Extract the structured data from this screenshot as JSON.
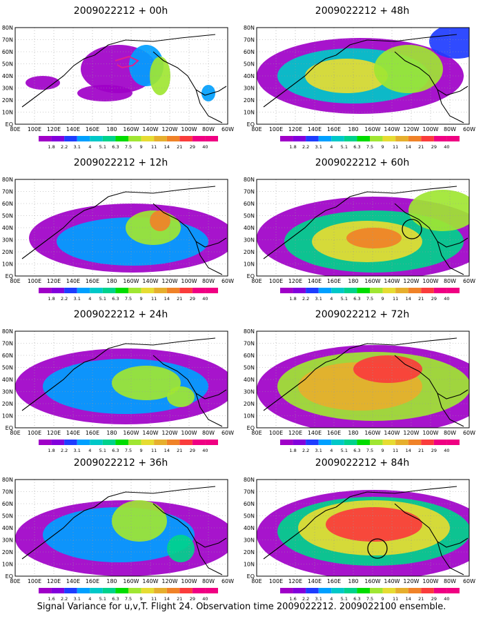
{
  "footer_caption": "Signal Variance for u,v,T. Flight 24. Observation time 2009022212. 2009022100 ensemble.",
  "lon_labels": [
    "80E",
    "100E",
    "120E",
    "140E",
    "160E",
    "180",
    "160W",
    "140W",
    "120W",
    "100W",
    "80W",
    "60W"
  ],
  "lat_labels": [
    "EQ",
    "10N",
    "20N",
    "30N",
    "40N",
    "50N",
    "60N",
    "70N",
    "80N"
  ],
  "colorbar": {
    "levels": [
      "1.8",
      "2.2",
      "3.1",
      "4",
      "5.1",
      "6.3",
      "7.5",
      "9",
      "11",
      "14",
      "21",
      "29",
      "40"
    ],
    "levels_alt": [
      "1.6",
      "2.2",
      "3.1",
      "4",
      "5.1",
      "6.3",
      "7.5",
      "9",
      "11",
      "14",
      "21",
      "29",
      "40"
    ],
    "colors": [
      "#a000c8",
      "#8200dc",
      "#1e3cff",
      "#00a0ff",
      "#00c8c8",
      "#00d28c",
      "#00dc00",
      "#a0e632",
      "#e6dc32",
      "#e6af2d",
      "#f08228",
      "#fa3c3c",
      "#f00082"
    ]
  },
  "panels": [
    {
      "title": "2009022212 + 00h",
      "overlay": "flight"
    },
    {
      "title": "2009022212 + 48h",
      "overlay": "none"
    },
    {
      "title": "2009022212 + 12h",
      "overlay": "none"
    },
    {
      "title": "2009022212 + 60h",
      "overlay": "circle"
    },
    {
      "title": "2009022212 + 24h",
      "overlay": "none"
    },
    {
      "title": "2009022212 + 72h",
      "overlay": "none"
    },
    {
      "title": "2009022212 + 36h",
      "overlay": "none"
    },
    {
      "title": "2009022212 + 84h",
      "overlay": "circle"
    }
  ]
}
